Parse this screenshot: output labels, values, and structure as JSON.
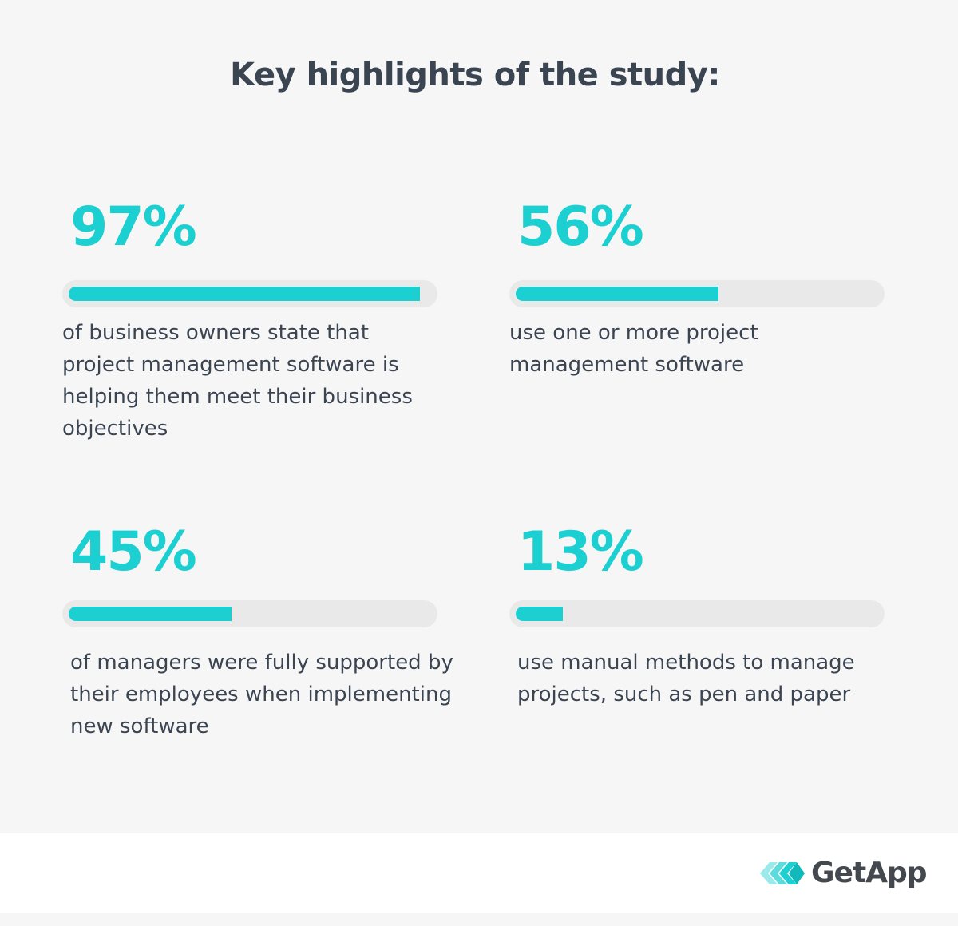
{
  "title": "Key highlights of the study:",
  "chart_data": {
    "type": "bar",
    "title": "Key highlights of the study:",
    "max": 100,
    "items": [
      {
        "value": 97,
        "label": "97%",
        "description": "of business owners state that project management software is helping them meet their business objectives"
      },
      {
        "value": 56,
        "label": "56%",
        "description": "use one or more project management software"
      },
      {
        "value": 45,
        "label": "45%",
        "description": "of managers were fully supported by their employees when implementing new software"
      },
      {
        "value": 13,
        "label": "13%",
        "description": "use manual methods to manage projects, such as pen and paper"
      }
    ]
  },
  "colors": {
    "accent": "#1ccfd1",
    "track": "#e8e9e8",
    "text": "#3b4451",
    "background": "#f6f6f6"
  },
  "footer": {
    "logo_text": "GetApp",
    "logo_icon": "getapp-chevrons-icon"
  }
}
